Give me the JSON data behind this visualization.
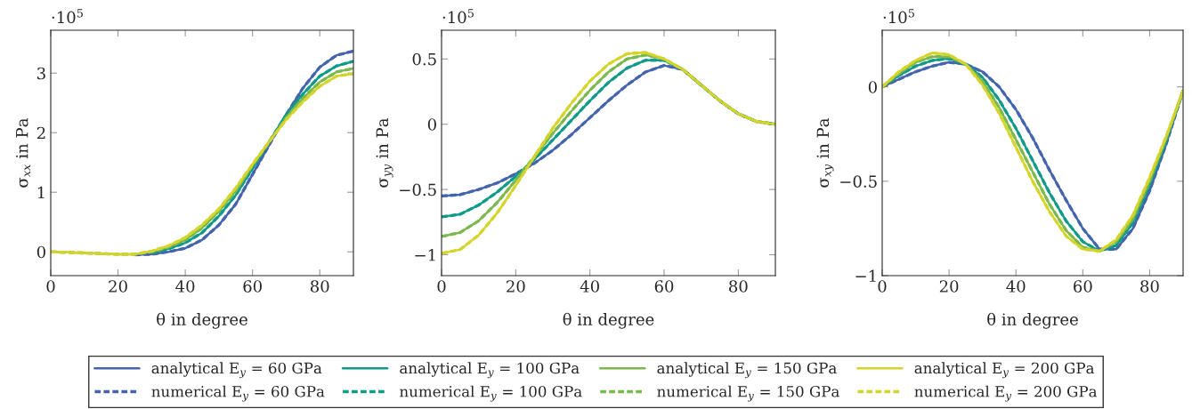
{
  "chart_data": [
    {
      "type": "line",
      "xlabel": "θ in degree",
      "ylabel": "σ$_{xx}$ in Pa",
      "annotations": [
        "·10$^{5}$"
      ],
      "x": [
        0,
        5,
        10,
        15,
        20,
        25,
        30,
        35,
        40,
        45,
        50,
        55,
        60,
        65,
        70,
        75,
        80,
        85,
        90
      ],
      "xlim": [
        0,
        90
      ],
      "xticks": [
        0,
        20,
        40,
        60,
        80
      ],
      "ylim": [
        -0.4,
        3.72
      ],
      "yticks": [
        0,
        1,
        2,
        3
      ],
      "grid": false,
      "legend": "bottom",
      "series": [
        {
          "name": "analytical E$_{y}$ = 60 GPa",
          "color": "#4464ad",
          "line_style": "solid",
          "values": [
            null,
            null,
            null,
            null,
            null,
            -0.05,
            -0.04,
            0.0,
            0.06,
            0.2,
            0.45,
            0.8,
            1.3,
            1.8,
            2.3,
            2.75,
            3.1,
            3.3,
            3.37
          ]
        },
        {
          "name": "numerical E$_{y}$ = 60 GPa",
          "color": "#4464ad",
          "line_style": "dashed",
          "values": [
            null,
            null,
            null,
            null,
            null,
            -0.05,
            -0.04,
            0.0,
            0.06,
            0.2,
            0.45,
            0.8,
            1.3,
            1.8,
            2.3,
            2.75,
            3.1,
            3.3,
            3.37
          ]
        },
        {
          "name": "analytical E$_{y}$ = 100 GPa",
          "color": "#0f9a8a",
          "line_style": "solid",
          "values": [
            null,
            null,
            null,
            null,
            null,
            null,
            -0.02,
            0.05,
            0.15,
            0.32,
            0.6,
            0.95,
            1.4,
            1.85,
            2.3,
            2.65,
            2.95,
            3.12,
            3.2
          ]
        },
        {
          "name": "numerical E$_{y}$ = 100 GPa",
          "color": "#0f9a8a",
          "line_style": "dashed",
          "values": [
            null,
            null,
            null,
            null,
            null,
            null,
            -0.02,
            0.05,
            0.15,
            0.32,
            0.6,
            0.95,
            1.4,
            1.85,
            2.3,
            2.65,
            2.95,
            3.12,
            3.2
          ]
        },
        {
          "name": "analytical E$_{y}$ = 150 GPa",
          "color": "#7bb84e",
          "line_style": "solid",
          "values": [
            0,
            -0.01,
            -0.02,
            -0.03,
            -0.04,
            -0.04,
            0.0,
            0.08,
            0.2,
            0.4,
            0.68,
            1.02,
            1.45,
            1.85,
            2.25,
            2.58,
            2.85,
            3.02,
            3.08
          ]
        },
        {
          "name": "numerical E$_{y}$ = 150 GPa",
          "color": "#7bb84e",
          "line_style": "dashed",
          "values": [
            0,
            -0.01,
            -0.02,
            -0.03,
            -0.04,
            -0.04,
            0.0,
            0.08,
            0.2,
            0.4,
            0.68,
            1.02,
            1.45,
            1.85,
            2.25,
            2.58,
            2.85,
            3.02,
            3.08
          ]
        },
        {
          "name": "analytical E$_{y}$ = 200 GPa",
          "color": "#d4d42a",
          "line_style": "solid",
          "values": [
            0,
            -0.01,
            -0.02,
            -0.03,
            -0.04,
            -0.04,
            0.01,
            0.1,
            0.24,
            0.45,
            0.72,
            1.07,
            1.47,
            1.85,
            2.22,
            2.52,
            2.78,
            2.95,
            2.99
          ]
        },
        {
          "name": "numerical E$_{y}$ = 200 GPa",
          "color": "#d4d42a",
          "line_style": "dashed",
          "values": [
            0,
            -0.01,
            -0.02,
            -0.03,
            -0.04,
            -0.04,
            0.01,
            0.1,
            0.24,
            0.45,
            0.72,
            1.07,
            1.47,
            1.85,
            2.22,
            2.52,
            2.78,
            2.95,
            2.99
          ]
        }
      ]
    },
    {
      "type": "line",
      "xlabel": "θ in degree",
      "ylabel": "σ$_{yy}$ in Pa",
      "annotations": [
        "·10$^{5}$"
      ],
      "x": [
        0,
        5,
        10,
        15,
        20,
        25,
        30,
        35,
        40,
        45,
        50,
        55,
        60,
        65,
        70,
        75,
        80,
        85,
        90
      ],
      "xlim": [
        0,
        90
      ],
      "xticks": [
        0,
        20,
        40,
        60,
        80
      ],
      "ylim": [
        -1.16,
        0.72
      ],
      "yticks": [
        0.5,
        0,
        -0.5,
        -1
      ],
      "grid": false,
      "legend": "bottom",
      "series": [
        {
          "name": "analytical E$_{y}$ = 60 GPa",
          "color": "#4464ad",
          "line_style": "solid",
          "values": [
            -0.55,
            -0.54,
            -0.5,
            -0.45,
            -0.38,
            -0.3,
            -0.2,
            -0.08,
            0.05,
            0.18,
            0.3,
            0.4,
            0.45,
            0.42,
            0.3,
            0.18,
            0.08,
            0.02,
            0
          ]
        },
        {
          "name": "numerical E$_{y}$ = 60 GPa",
          "color": "#4464ad",
          "line_style": "dashed",
          "values": [
            -0.55,
            -0.54,
            -0.5,
            -0.45,
            -0.38,
            -0.3,
            -0.2,
            -0.08,
            0.05,
            0.18,
            0.3,
            0.4,
            0.45,
            0.42,
            0.3,
            0.18,
            0.08,
            0.02,
            0
          ]
        },
        {
          "name": "analytical E$_{y}$ = 100 GPa",
          "color": "#0f9a8a",
          "line_style": "solid",
          "values": [
            -0.71,
            -0.69,
            -0.62,
            -0.52,
            -0.4,
            -0.27,
            -0.12,
            0.03,
            0.18,
            0.32,
            0.43,
            0.49,
            0.49,
            0.42,
            0.3,
            0.18,
            0.08,
            0.02,
            0
          ]
        },
        {
          "name": "numerical E$_{y}$ = 100 GPa",
          "color": "#0f9a8a",
          "line_style": "dashed",
          "values": [
            -0.71,
            -0.69,
            -0.62,
            -0.52,
            -0.4,
            -0.27,
            -0.12,
            0.03,
            0.18,
            0.32,
            0.43,
            0.49,
            0.49,
            0.42,
            0.3,
            0.18,
            0.08,
            0.02,
            0
          ]
        },
        {
          "name": "analytical E$_{y}$ = 150 GPa",
          "color": "#7bb84e",
          "line_style": "solid",
          "values": [
            -0.86,
            -0.83,
            -0.74,
            -0.6,
            -0.43,
            -0.25,
            -0.07,
            0.1,
            0.26,
            0.4,
            0.5,
            0.53,
            0.5,
            0.42,
            0.3,
            0.18,
            0.08,
            0.02,
            0
          ]
        },
        {
          "name": "numerical E$_{y}$ = 150 GPa",
          "color": "#7bb84e",
          "line_style": "dashed",
          "values": [
            -0.86,
            -0.83,
            -0.74,
            -0.6,
            -0.43,
            -0.25,
            -0.07,
            0.1,
            0.26,
            0.4,
            0.5,
            0.53,
            0.5,
            0.42,
            0.3,
            0.18,
            0.08,
            0.02,
            0
          ]
        },
        {
          "name": "analytical E$_{y}$ = 200 GPa",
          "color": "#d4d42a",
          "line_style": "solid",
          "values": [
            -0.99,
            -0.96,
            -0.85,
            -0.68,
            -0.47,
            -0.25,
            -0.03,
            0.16,
            0.33,
            0.46,
            0.54,
            0.55,
            0.5,
            0.42,
            0.3,
            0.18,
            0.08,
            0.02,
            0
          ]
        },
        {
          "name": "numerical E$_{y}$ = 200 GPa",
          "color": "#d4d42a",
          "line_style": "dashed",
          "values": [
            -0.99,
            -0.96,
            -0.85,
            -0.68,
            -0.47,
            -0.25,
            -0.03,
            0.16,
            0.33,
            0.46,
            0.54,
            0.55,
            0.5,
            0.42,
            0.3,
            0.18,
            0.08,
            0.02,
            0
          ]
        }
      ]
    },
    {
      "type": "line",
      "xlabel": "θ in degree",
      "ylabel": "σ$_{xy}$ in Pa",
      "annotations": [
        "·10$^{5}$"
      ],
      "x": [
        0,
        5,
        10,
        15,
        20,
        25,
        30,
        35,
        40,
        45,
        50,
        55,
        60,
        65,
        70,
        75,
        80,
        85,
        90
      ],
      "xlim": [
        0,
        90
      ],
      "xticks": [
        0,
        20,
        40,
        60,
        80
      ],
      "ylim": [
        -1,
        0.3
      ],
      "yticks": [
        0,
        -0.5,
        -1
      ],
      "grid": false,
      "legend": "bottom",
      "series": [
        {
          "name": "analytical E$_{y}$ = 60 GPa",
          "color": "#4464ad",
          "line_style": "solid",
          "values": [
            0,
            0.04,
            0.08,
            0.11,
            0.13,
            0.12,
            0.08,
            0.0,
            -0.12,
            -0.27,
            -0.44,
            -0.6,
            -0.75,
            -0.86,
            -0.86,
            -0.75,
            -0.55,
            -0.3,
            -0.02
          ]
        },
        {
          "name": "numerical E$_{y}$ = 60 GPa",
          "color": "#4464ad",
          "line_style": "dashed",
          "values": [
            0,
            0.04,
            0.08,
            0.11,
            0.13,
            0.12,
            0.08,
            0.0,
            -0.12,
            -0.27,
            -0.44,
            -0.6,
            -0.75,
            -0.86,
            -0.86,
            -0.75,
            -0.55,
            -0.3,
            -0.02
          ]
        },
        {
          "name": "analytical E$_{y}$ = 100 GPa",
          "color": "#0f9a8a",
          "line_style": "solid",
          "values": [
            0,
            0.06,
            0.11,
            0.14,
            0.15,
            0.12,
            0.05,
            -0.07,
            -0.22,
            -0.39,
            -0.56,
            -0.71,
            -0.82,
            -0.87,
            -0.84,
            -0.72,
            -0.52,
            -0.28,
            -0.02
          ]
        },
        {
          "name": "numerical E$_{y}$ = 100 GPa",
          "color": "#0f9a8a",
          "line_style": "dashed",
          "values": [
            0,
            0.06,
            0.11,
            0.14,
            0.15,
            0.12,
            0.05,
            -0.07,
            -0.22,
            -0.39,
            -0.56,
            -0.71,
            -0.82,
            -0.87,
            -0.84,
            -0.72,
            -0.52,
            -0.28,
            -0.02
          ]
        },
        {
          "name": "analytical E$_{y}$ = 150 GPa",
          "color": "#7bb84e",
          "line_style": "solid",
          "values": [
            0,
            0.07,
            0.13,
            0.16,
            0.16,
            0.12,
            0.03,
            -0.11,
            -0.28,
            -0.45,
            -0.62,
            -0.76,
            -0.85,
            -0.87,
            -0.82,
            -0.7,
            -0.5,
            -0.27,
            -0.02
          ]
        },
        {
          "name": "numerical E$_{y}$ = 150 GPa",
          "color": "#7bb84e",
          "line_style": "dashed",
          "values": [
            0,
            0.07,
            0.13,
            0.16,
            0.16,
            0.12,
            0.03,
            -0.11,
            -0.28,
            -0.45,
            -0.62,
            -0.76,
            -0.85,
            -0.87,
            -0.82,
            -0.7,
            -0.5,
            -0.27,
            -0.02
          ]
        },
        {
          "name": "analytical E$_{y}$ = 200 GPa",
          "color": "#d4d42a",
          "line_style": "solid",
          "values": [
            0,
            0.08,
            0.14,
            0.18,
            0.17,
            0.12,
            0.01,
            -0.14,
            -0.32,
            -0.5,
            -0.66,
            -0.79,
            -0.86,
            -0.87,
            -0.81,
            -0.68,
            -0.48,
            -0.26,
            -0.02
          ]
        },
        {
          "name": "numerical E$_{y}$ = 200 GPa",
          "color": "#d4d42a",
          "line_style": "dashed",
          "values": [
            0,
            0.08,
            0.14,
            0.18,
            0.17,
            0.12,
            0.01,
            -0.14,
            -0.32,
            -0.5,
            -0.66,
            -0.79,
            -0.86,
            -0.87,
            -0.81,
            -0.68,
            -0.48,
            -0.26,
            -0.02
          ]
        }
      ]
    }
  ]
}
